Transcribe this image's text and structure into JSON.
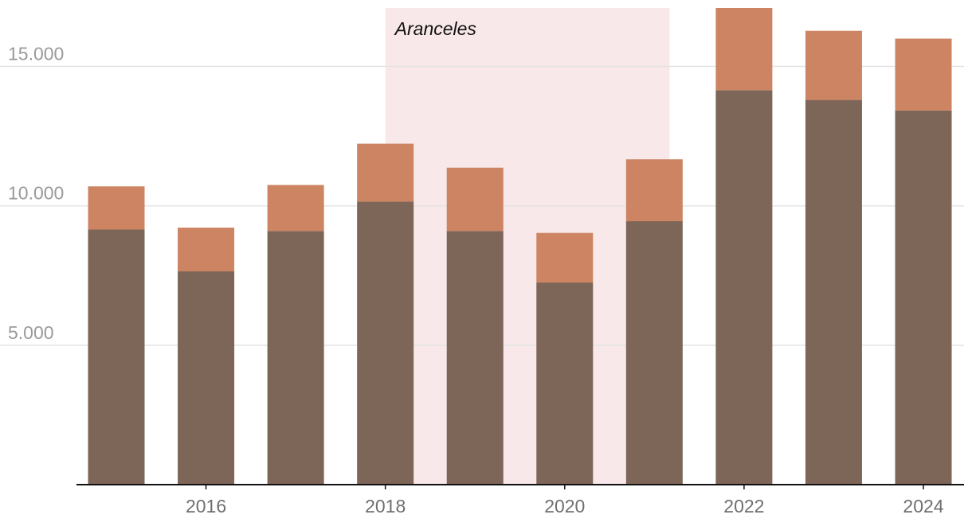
{
  "chart_data": {
    "type": "bar",
    "stacked": true,
    "title": "",
    "xlabel": "",
    "ylabel": "",
    "x": [
      2015,
      2016,
      2017,
      2018,
      2019,
      2020,
      2021,
      2022,
      2023,
      2024
    ],
    "x_tick_labels": [
      "2016",
      "2018",
      "2020",
      "2022",
      "2024"
    ],
    "x_tick_values": [
      2016,
      2018,
      2020,
      2022,
      2024
    ],
    "y_tick_labels": [
      "5.000",
      "10.000",
      "15.000"
    ],
    "y_tick_values": [
      5000,
      10000,
      15000
    ],
    "ylim": [
      0,
      17100
    ],
    "grid": true,
    "legend": "none",
    "series": [
      {
        "color": "#7d6557",
        "values": [
          9150,
          7650,
          9100,
          10150,
          9100,
          7250,
          9450,
          14150,
          13800,
          13420
        ]
      },
      {
        "color": "#cd8462",
        "values": [
          1550,
          1570,
          1650,
          2080,
          2270,
          1780,
          2220,
          2950,
          2480,
          2580
        ]
      }
    ],
    "annotations": [
      {
        "label": "Aranceles",
        "x_start": 2018,
        "x_end": 2021.17,
        "color": "#f8e8e9"
      }
    ]
  }
}
